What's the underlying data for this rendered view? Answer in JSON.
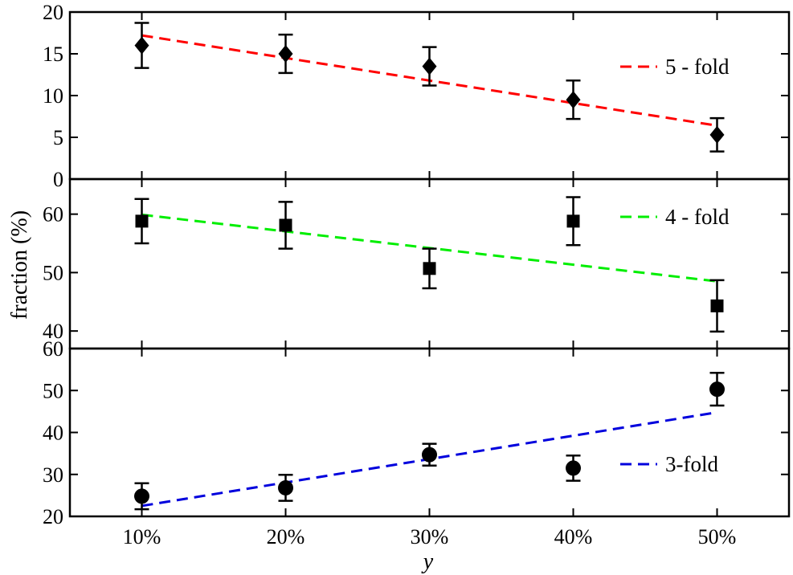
{
  "chart_data": {
    "type": "scatter",
    "xlabel": "y",
    "ylabel": "fraction (%)",
    "categories": [
      "10%",
      "20%",
      "30%",
      "40%",
      "50%"
    ],
    "x": [
      10,
      20,
      30,
      40,
      50
    ],
    "xlim": [
      5,
      55
    ],
    "panels": [
      {
        "name": "5-fold-panel",
        "ylim": [
          0,
          20
        ],
        "yticks": [
          0,
          5,
          10,
          15,
          20
        ],
        "marker": "diamond",
        "values": [
          16.0,
          15.0,
          13.5,
          9.5,
          5.3
        ],
        "errors": [
          2.7,
          2.3,
          2.3,
          2.3,
          2.0
        ],
        "fit": {
          "x": [
            10,
            50
          ],
          "y": [
            17.2,
            6.4
          ],
          "color": "#ff0000",
          "label": "5 - fold"
        }
      },
      {
        "name": "4-fold-panel",
        "ylim": [
          37,
          66
        ],
        "yticks": [
          40,
          50,
          60
        ],
        "marker": "square",
        "values": [
          58.8,
          58.1,
          50.7,
          58.8,
          44.3
        ],
        "errors": [
          3.8,
          4.0,
          3.4,
          4.1,
          4.4
        ],
        "fit": {
          "x": [
            10,
            50
          ],
          "y": [
            59.9,
            48.5
          ],
          "color": "#00ee00",
          "label": "4 - fold"
        }
      },
      {
        "name": "3-fold-panel",
        "ylim": [
          20,
          60
        ],
        "yticks": [
          20,
          30,
          40,
          50,
          60
        ],
        "marker": "circle",
        "values": [
          24.8,
          26.8,
          34.7,
          31.5,
          50.3
        ],
        "errors": [
          3.1,
          3.1,
          2.6,
          3.0,
          3.9
        ],
        "fit": {
          "x": [
            10,
            50
          ],
          "y": [
            22.5,
            44.8
          ],
          "color": "#0000dd",
          "label": "3-fold"
        }
      }
    ]
  }
}
